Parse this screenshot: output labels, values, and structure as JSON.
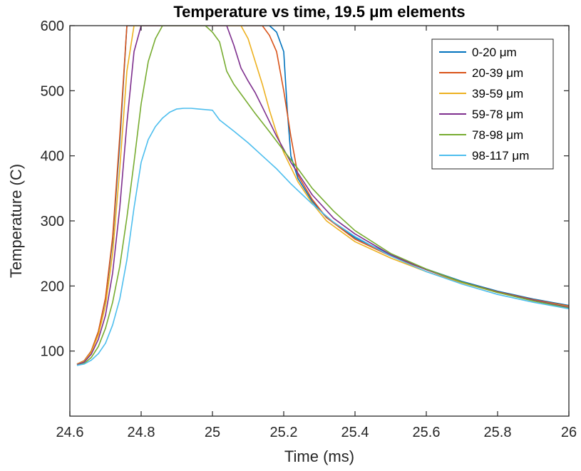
{
  "chart_data": {
    "type": "line",
    "title": "Temperature vs time, 19.5 μm elements",
    "xlabel": "Time (ms)",
    "ylabel": "Temperature (C)",
    "xlim": [
      24.6,
      26
    ],
    "ylim": [
      0,
      600
    ],
    "xticks": [
      24.6,
      24.8,
      25,
      25.2,
      25.4,
      25.6,
      25.8,
      26
    ],
    "xtick_labels": [
      "24.6",
      "24.8",
      "25",
      "25.2",
      "25.4",
      "25.6",
      "25.8",
      "26"
    ],
    "yticks": [
      100,
      200,
      300,
      400,
      500,
      600
    ],
    "ytick_labels": [
      "100",
      "200",
      "300",
      "400",
      "500",
      "600"
    ],
    "grid": false,
    "legend_position": "top-right",
    "series": [
      {
        "name": "0-20 μm",
        "color": "#0072BD",
        "points": [
          [
            24.62,
            80
          ],
          [
            24.64,
            85
          ],
          [
            24.66,
            100
          ],
          [
            24.68,
            130
          ],
          [
            24.7,
            180
          ],
          [
            24.72,
            270
          ],
          [
            24.74,
            420
          ],
          [
            24.76,
            600
          ],
          [
            25.16,
            600
          ],
          [
            25.18,
            590
          ],
          [
            25.2,
            560
          ],
          [
            25.21,
            470
          ],
          [
            25.22,
            400
          ],
          [
            25.24,
            365
          ],
          [
            25.28,
            330
          ],
          [
            25.32,
            305
          ],
          [
            25.4,
            274
          ],
          [
            25.5,
            248
          ],
          [
            25.6,
            226
          ],
          [
            25.7,
            207
          ],
          [
            25.8,
            192
          ],
          [
            25.9,
            180
          ],
          [
            26.0,
            170
          ]
        ]
      },
      {
        "name": "20-39 μm",
        "color": "#D95319",
        "points": [
          [
            24.62,
            80
          ],
          [
            24.64,
            85
          ],
          [
            24.66,
            100
          ],
          [
            24.68,
            130
          ],
          [
            24.7,
            182
          ],
          [
            24.72,
            275
          ],
          [
            24.74,
            430
          ],
          [
            24.76,
            600
          ],
          [
            25.14,
            600
          ],
          [
            25.16,
            585
          ],
          [
            25.18,
            560
          ],
          [
            25.2,
            500
          ],
          [
            25.22,
            430
          ],
          [
            25.24,
            370
          ],
          [
            25.28,
            333
          ],
          [
            25.32,
            305
          ],
          [
            25.4,
            272
          ],
          [
            25.5,
            246
          ],
          [
            25.6,
            225
          ],
          [
            25.7,
            206
          ],
          [
            25.8,
            191
          ],
          [
            25.9,
            179
          ],
          [
            26.0,
            169
          ]
        ]
      },
      {
        "name": "39-59 μm",
        "color": "#EDB120",
        "points": [
          [
            24.62,
            80
          ],
          [
            24.64,
            84
          ],
          [
            24.66,
            98
          ],
          [
            24.68,
            125
          ],
          [
            24.7,
            170
          ],
          [
            24.72,
            250
          ],
          [
            24.74,
            380
          ],
          [
            24.76,
            530
          ],
          [
            24.78,
            600
          ],
          [
            25.08,
            600
          ],
          [
            25.1,
            580
          ],
          [
            25.12,
            545
          ],
          [
            25.14,
            510
          ],
          [
            25.16,
            470
          ],
          [
            25.18,
            435
          ],
          [
            25.2,
            405
          ],
          [
            25.24,
            360
          ],
          [
            25.28,
            327
          ],
          [
            25.32,
            300
          ],
          [
            25.4,
            268
          ],
          [
            25.5,
            243
          ],
          [
            25.6,
            222
          ],
          [
            25.7,
            205
          ],
          [
            25.8,
            190
          ],
          [
            25.9,
            178
          ],
          [
            26.0,
            168
          ]
        ]
      },
      {
        "name": "59-78 μm",
        "color": "#7E2F8E",
        "points": [
          [
            24.62,
            79
          ],
          [
            24.64,
            83
          ],
          [
            24.66,
            95
          ],
          [
            24.68,
            118
          ],
          [
            24.7,
            155
          ],
          [
            24.72,
            220
          ],
          [
            24.74,
            320
          ],
          [
            24.76,
            450
          ],
          [
            24.78,
            560
          ],
          [
            24.8,
            600
          ],
          [
            25.04,
            600
          ],
          [
            25.06,
            570
          ],
          [
            25.08,
            535
          ],
          [
            25.1,
            515
          ],
          [
            25.12,
            497
          ],
          [
            25.14,
            475
          ],
          [
            25.18,
            430
          ],
          [
            25.22,
            390
          ],
          [
            25.28,
            340
          ],
          [
            25.34,
            304
          ],
          [
            25.4,
            280
          ],
          [
            25.5,
            248
          ],
          [
            25.6,
            225
          ],
          [
            25.7,
            206
          ],
          [
            25.8,
            190
          ],
          [
            25.9,
            178
          ],
          [
            26.0,
            167
          ]
        ]
      },
      {
        "name": "78-98 μm",
        "color": "#77AC30",
        "points": [
          [
            24.62,
            78
          ],
          [
            24.64,
            81
          ],
          [
            24.66,
            90
          ],
          [
            24.68,
            107
          ],
          [
            24.7,
            135
          ],
          [
            24.72,
            175
          ],
          [
            24.74,
            230
          ],
          [
            24.76,
            305
          ],
          [
            24.78,
            390
          ],
          [
            24.8,
            480
          ],
          [
            24.82,
            545
          ],
          [
            24.84,
            580
          ],
          [
            24.86,
            600
          ],
          [
            24.98,
            600
          ],
          [
            25.0,
            590
          ],
          [
            25.02,
            575
          ],
          [
            25.04,
            530
          ],
          [
            25.06,
            510
          ],
          [
            25.08,
            495
          ],
          [
            25.12,
            465
          ],
          [
            25.16,
            437
          ],
          [
            25.2,
            408
          ],
          [
            25.24,
            380
          ],
          [
            25.28,
            350
          ],
          [
            25.34,
            315
          ],
          [
            25.4,
            285
          ],
          [
            25.5,
            250
          ],
          [
            25.6,
            226
          ],
          [
            25.7,
            206
          ],
          [
            25.8,
            190
          ],
          [
            25.9,
            177
          ],
          [
            26.0,
            166
          ]
        ]
      },
      {
        "name": "98-117 μm",
        "color": "#4DBEEE",
        "points": [
          [
            24.62,
            78
          ],
          [
            24.64,
            80
          ],
          [
            24.66,
            86
          ],
          [
            24.68,
            96
          ],
          [
            24.7,
            112
          ],
          [
            24.72,
            140
          ],
          [
            24.74,
            180
          ],
          [
            24.76,
            240
          ],
          [
            24.78,
            320
          ],
          [
            24.8,
            390
          ],
          [
            24.82,
            425
          ],
          [
            24.84,
            445
          ],
          [
            24.86,
            458
          ],
          [
            24.88,
            467
          ],
          [
            24.9,
            472
          ],
          [
            24.92,
            473
          ],
          [
            24.94,
            473
          ],
          [
            24.96,
            472
          ],
          [
            24.98,
            471
          ],
          [
            25.0,
            470
          ],
          [
            25.02,
            455
          ],
          [
            25.06,
            438
          ],
          [
            25.1,
            420
          ],
          [
            25.14,
            400
          ],
          [
            25.18,
            380
          ],
          [
            25.22,
            357
          ],
          [
            25.28,
            326
          ],
          [
            25.34,
            298
          ],
          [
            25.4,
            276
          ],
          [
            25.5,
            246
          ],
          [
            25.6,
            222
          ],
          [
            25.7,
            203
          ],
          [
            25.8,
            187
          ],
          [
            25.9,
            175
          ],
          [
            26.0,
            165
          ]
        ]
      }
    ]
  }
}
